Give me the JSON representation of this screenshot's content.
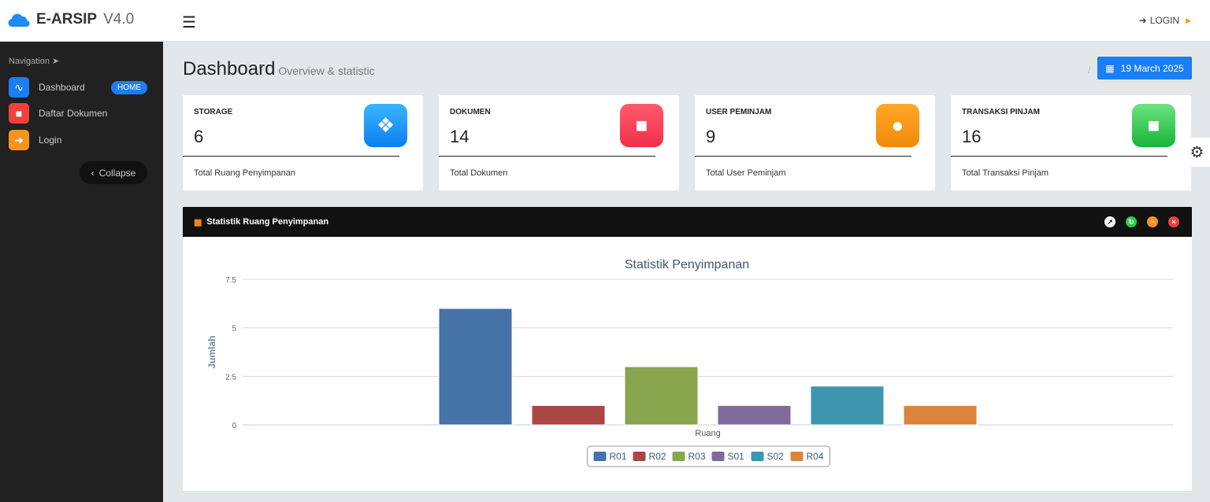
{
  "header": {
    "brand_name": "E-ARSIP",
    "brand_version": "V4.0",
    "login_label": "LOGIN"
  },
  "sidebar": {
    "nav_label": "Navigation",
    "items": [
      {
        "label": "Dashboard",
        "badge": "HOME",
        "icon": "pulse-icon",
        "color": "#1a7ef5"
      },
      {
        "label": "Daftar Dokumen",
        "icon": "folder-icon",
        "color": "#f0413c"
      },
      {
        "label": "Login",
        "icon": "sign-in-icon",
        "color": "#f7931e"
      }
    ],
    "collapse_label": "Collapse"
  },
  "page": {
    "title": "Dashboard",
    "subtitle": "Overview & statistic",
    "date": "19 March 2025"
  },
  "cards": [
    {
      "label": "STORAGE",
      "value": "6",
      "footer": "Total Ruang Penyimpanan",
      "icon": "dropbox-icon",
      "color": "#1a9af5"
    },
    {
      "label": "DOKUMEN",
      "value": "14",
      "footer": "Total Dokumen",
      "icon": "folder-icon",
      "color": "#f43a55"
    },
    {
      "label": "USER PEMINJAM",
      "value": "9",
      "footer": "Total User Peminjam",
      "icon": "user-icon",
      "color": "#f7931e"
    },
    {
      "label": "TRANSAKSI PINJAM",
      "value": "16",
      "footer": "Total Transaksi Pinjam",
      "icon": "archive-icon",
      "color": "#2ec74a"
    }
  ],
  "panel": {
    "title": "Statistik Ruang Penyimpanan"
  },
  "chart_data": {
    "type": "bar",
    "title": "Statistik Penyimpanan",
    "xlabel": "Ruang",
    "ylabel": "Jumlah",
    "ylim": [
      0,
      7.5
    ],
    "yticks": [
      "0",
      "2.5",
      "5",
      "7.5"
    ],
    "grid": true,
    "legend": "bottom",
    "series": [
      {
        "name": "R01",
        "values": [
          6
        ],
        "color": "#4572a7"
      },
      {
        "name": "R02",
        "values": [
          1
        ],
        "color": "#aa4643"
      },
      {
        "name": "R03",
        "values": [
          3
        ],
        "color": "#89a54e"
      },
      {
        "name": "S01",
        "values": [
          1
        ],
        "color": "#80699b"
      },
      {
        "name": "S02",
        "values": [
          2
        ],
        "color": "#3d96ae"
      },
      {
        "name": "R04",
        "values": [
          1
        ],
        "color": "#db843d"
      }
    ]
  }
}
